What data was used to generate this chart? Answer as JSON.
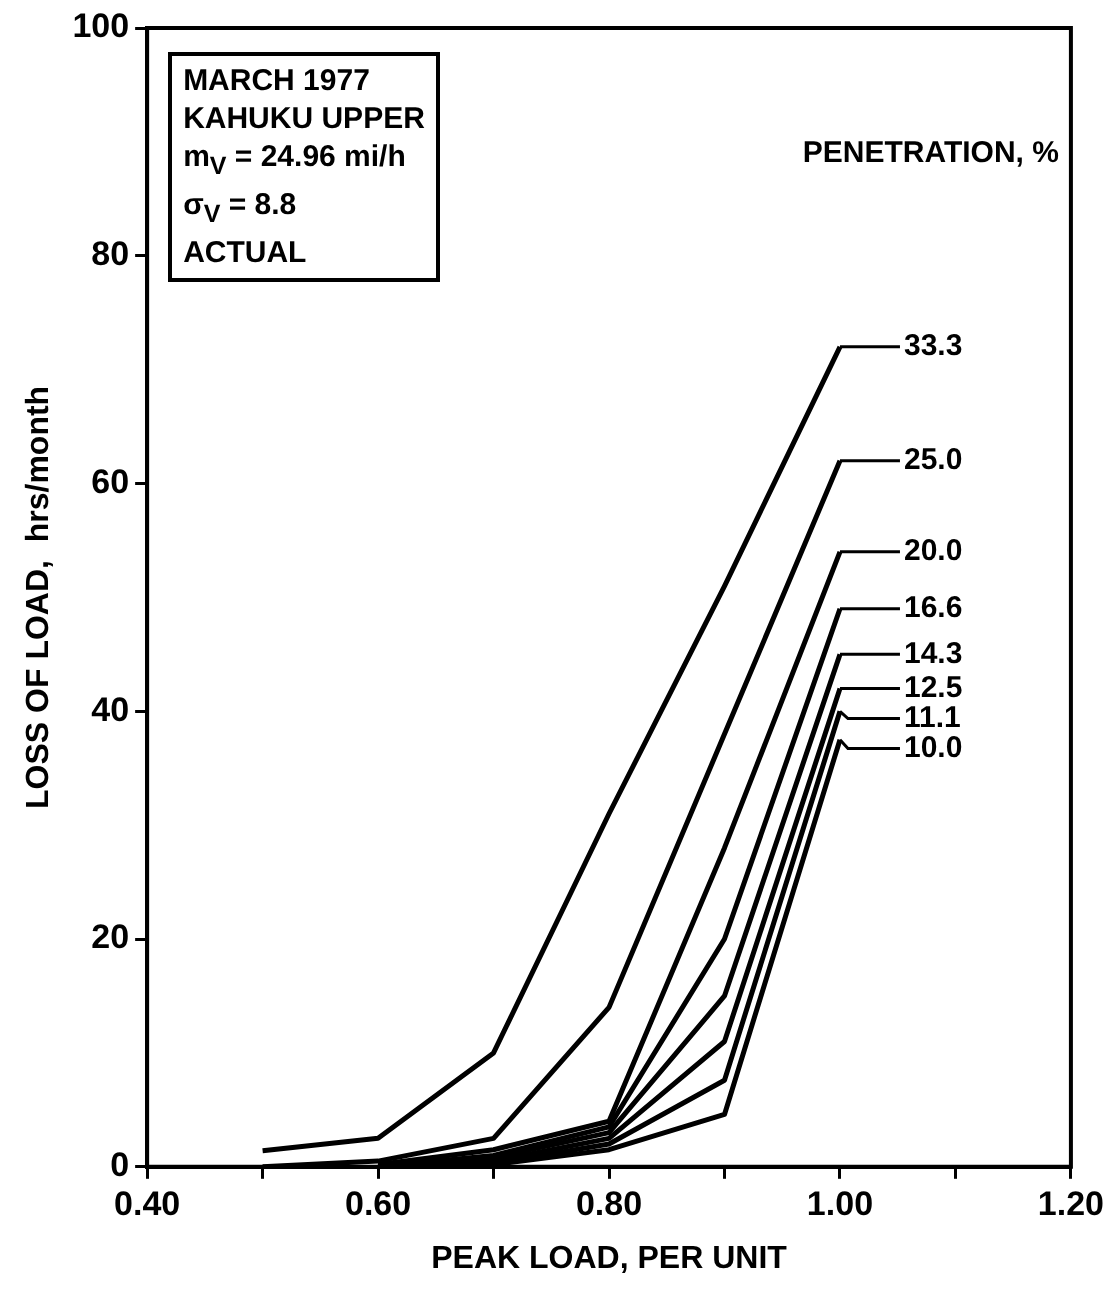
{
  "chart_data": {
    "type": "line",
    "xlabel": "PEAK LOAD, PER UNIT",
    "ylabel": "LOSS OF LOAD,  hrs/month",
    "legend_title": "PENETRATION, %",
    "annotations": [
      "MARCH 1977",
      "KAHUKU UPPER",
      "m$_{V}$ = 24.96 mi/h",
      "σ$_{V}$ = 8.8",
      "ACTUAL"
    ],
    "x": [
      0.5,
      0.6,
      0.7,
      0.8,
      0.9,
      1.0
    ],
    "series": [
      {
        "name": "33.3",
        "color": "#000000",
        "values": [
          1.4,
          2.5,
          10,
          31,
          51,
          72
        ]
      },
      {
        "name": "25.0",
        "color": "#000000",
        "values": [
          0,
          0.5,
          2.5,
          14,
          38,
          62
        ]
      },
      {
        "name": "20.0",
        "color": "#000000",
        "values": [
          null,
          0.2,
          1.5,
          4,
          28,
          54
        ]
      },
      {
        "name": "16.6",
        "color": "#000000",
        "values": [
          null,
          0,
          1,
          3.5,
          20,
          49
        ]
      },
      {
        "name": "14.3",
        "color": "#000000",
        "values": [
          null,
          0,
          0.8,
          3,
          15,
          45
        ]
      },
      {
        "name": "12.5",
        "color": "#000000",
        "values": [
          null,
          0,
          0.5,
          2.5,
          11,
          42
        ]
      },
      {
        "name": "11.1",
        "color": "#000000",
        "values": [
          null,
          0,
          0.3,
          2,
          7.6,
          40
        ]
      },
      {
        "name": "10.0",
        "color": "#000000",
        "values": [
          null,
          0,
          0.2,
          1.5,
          4.6,
          37.5
        ]
      }
    ],
    "xlim": [
      0.4,
      1.2
    ],
    "ylim": [
      0,
      100
    ],
    "xticks": [
      {
        "value": 0.4,
        "label": "0.40"
      },
      {
        "value": 0.5,
        "label": null
      },
      {
        "value": 0.6,
        "label": "0.60"
      },
      {
        "value": 0.7,
        "label": null
      },
      {
        "value": 0.8,
        "label": "0.80"
      },
      {
        "value": 0.9,
        "label": null
      },
      {
        "value": 1.0,
        "label": "1.00"
      },
      {
        "value": 1.1,
        "label": null
      },
      {
        "value": 1.2,
        "label": "1.20"
      }
    ],
    "yticks": [
      0,
      20,
      40,
      60,
      80,
      100
    ],
    "grid": false,
    "legend": "right",
    "marker": "none",
    "line_style": "solid"
  }
}
